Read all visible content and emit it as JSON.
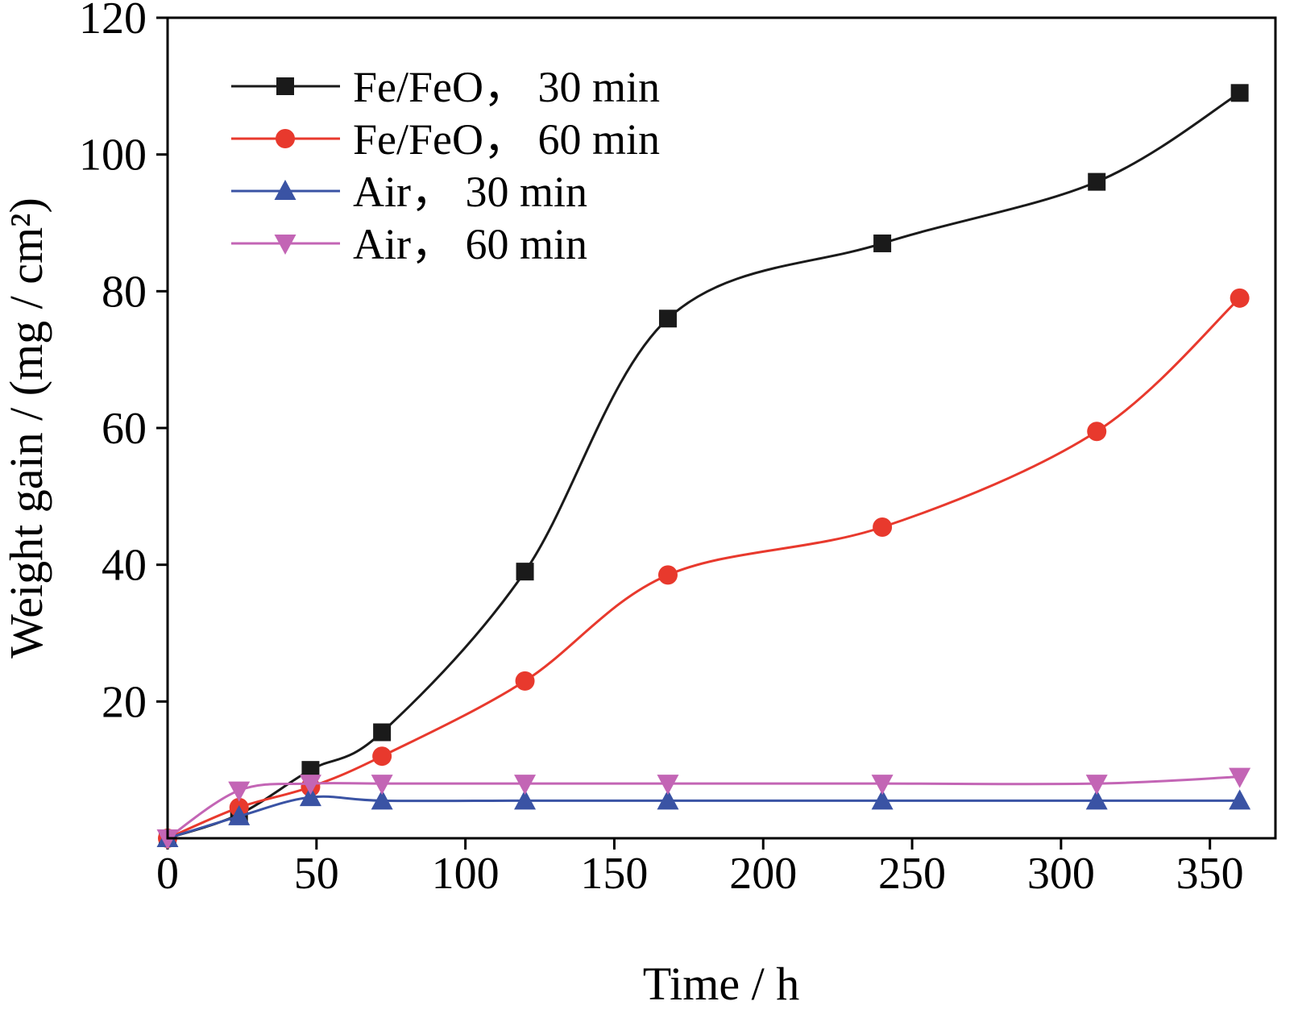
{
  "figure": {
    "background": "#ffffff",
    "frame_color": "#000000"
  },
  "chart_data": {
    "type": "line",
    "title": "",
    "xlabel": "Time / h",
    "ylabel": "Weight gain / (mg / cm²)",
    "xlim": [
      0,
      372
    ],
    "ylim": [
      0,
      120
    ],
    "xticks": [
      0,
      50,
      100,
      150,
      200,
      250,
      300,
      350
    ],
    "yticks": [
      20,
      40,
      60,
      80,
      100,
      120
    ],
    "grid": false,
    "legend": {
      "position": "top-left-inside"
    },
    "x": [
      0,
      24,
      48,
      72,
      120,
      168,
      240,
      312,
      360
    ],
    "series": [
      {
        "name": "Fe/FeO， 30 min",
        "color": "#1a1a1a",
        "marker": "square",
        "values": [
          0,
          3.5,
          10,
          15.5,
          39,
          76,
          87,
          96,
          109
        ]
      },
      {
        "name": "Fe/FeO， 60 min",
        "color": "#e8392d",
        "marker": "circle",
        "values": [
          0,
          4.5,
          7.5,
          12,
          23,
          38.5,
          45.5,
          59.5,
          79
        ]
      },
      {
        "name": "Air， 30 min",
        "color": "#3a53a4",
        "marker": "triangle-up",
        "values": [
          0,
          3.2,
          6,
          5.5,
          5.5,
          5.5,
          5.5,
          5.5,
          5.5
        ]
      },
      {
        "name": "Air， 60 min",
        "color": "#c365b5",
        "marker": "triangle-down",
        "values": [
          0,
          7,
          8,
          8,
          8,
          8,
          8,
          8,
          9
        ]
      }
    ]
  }
}
